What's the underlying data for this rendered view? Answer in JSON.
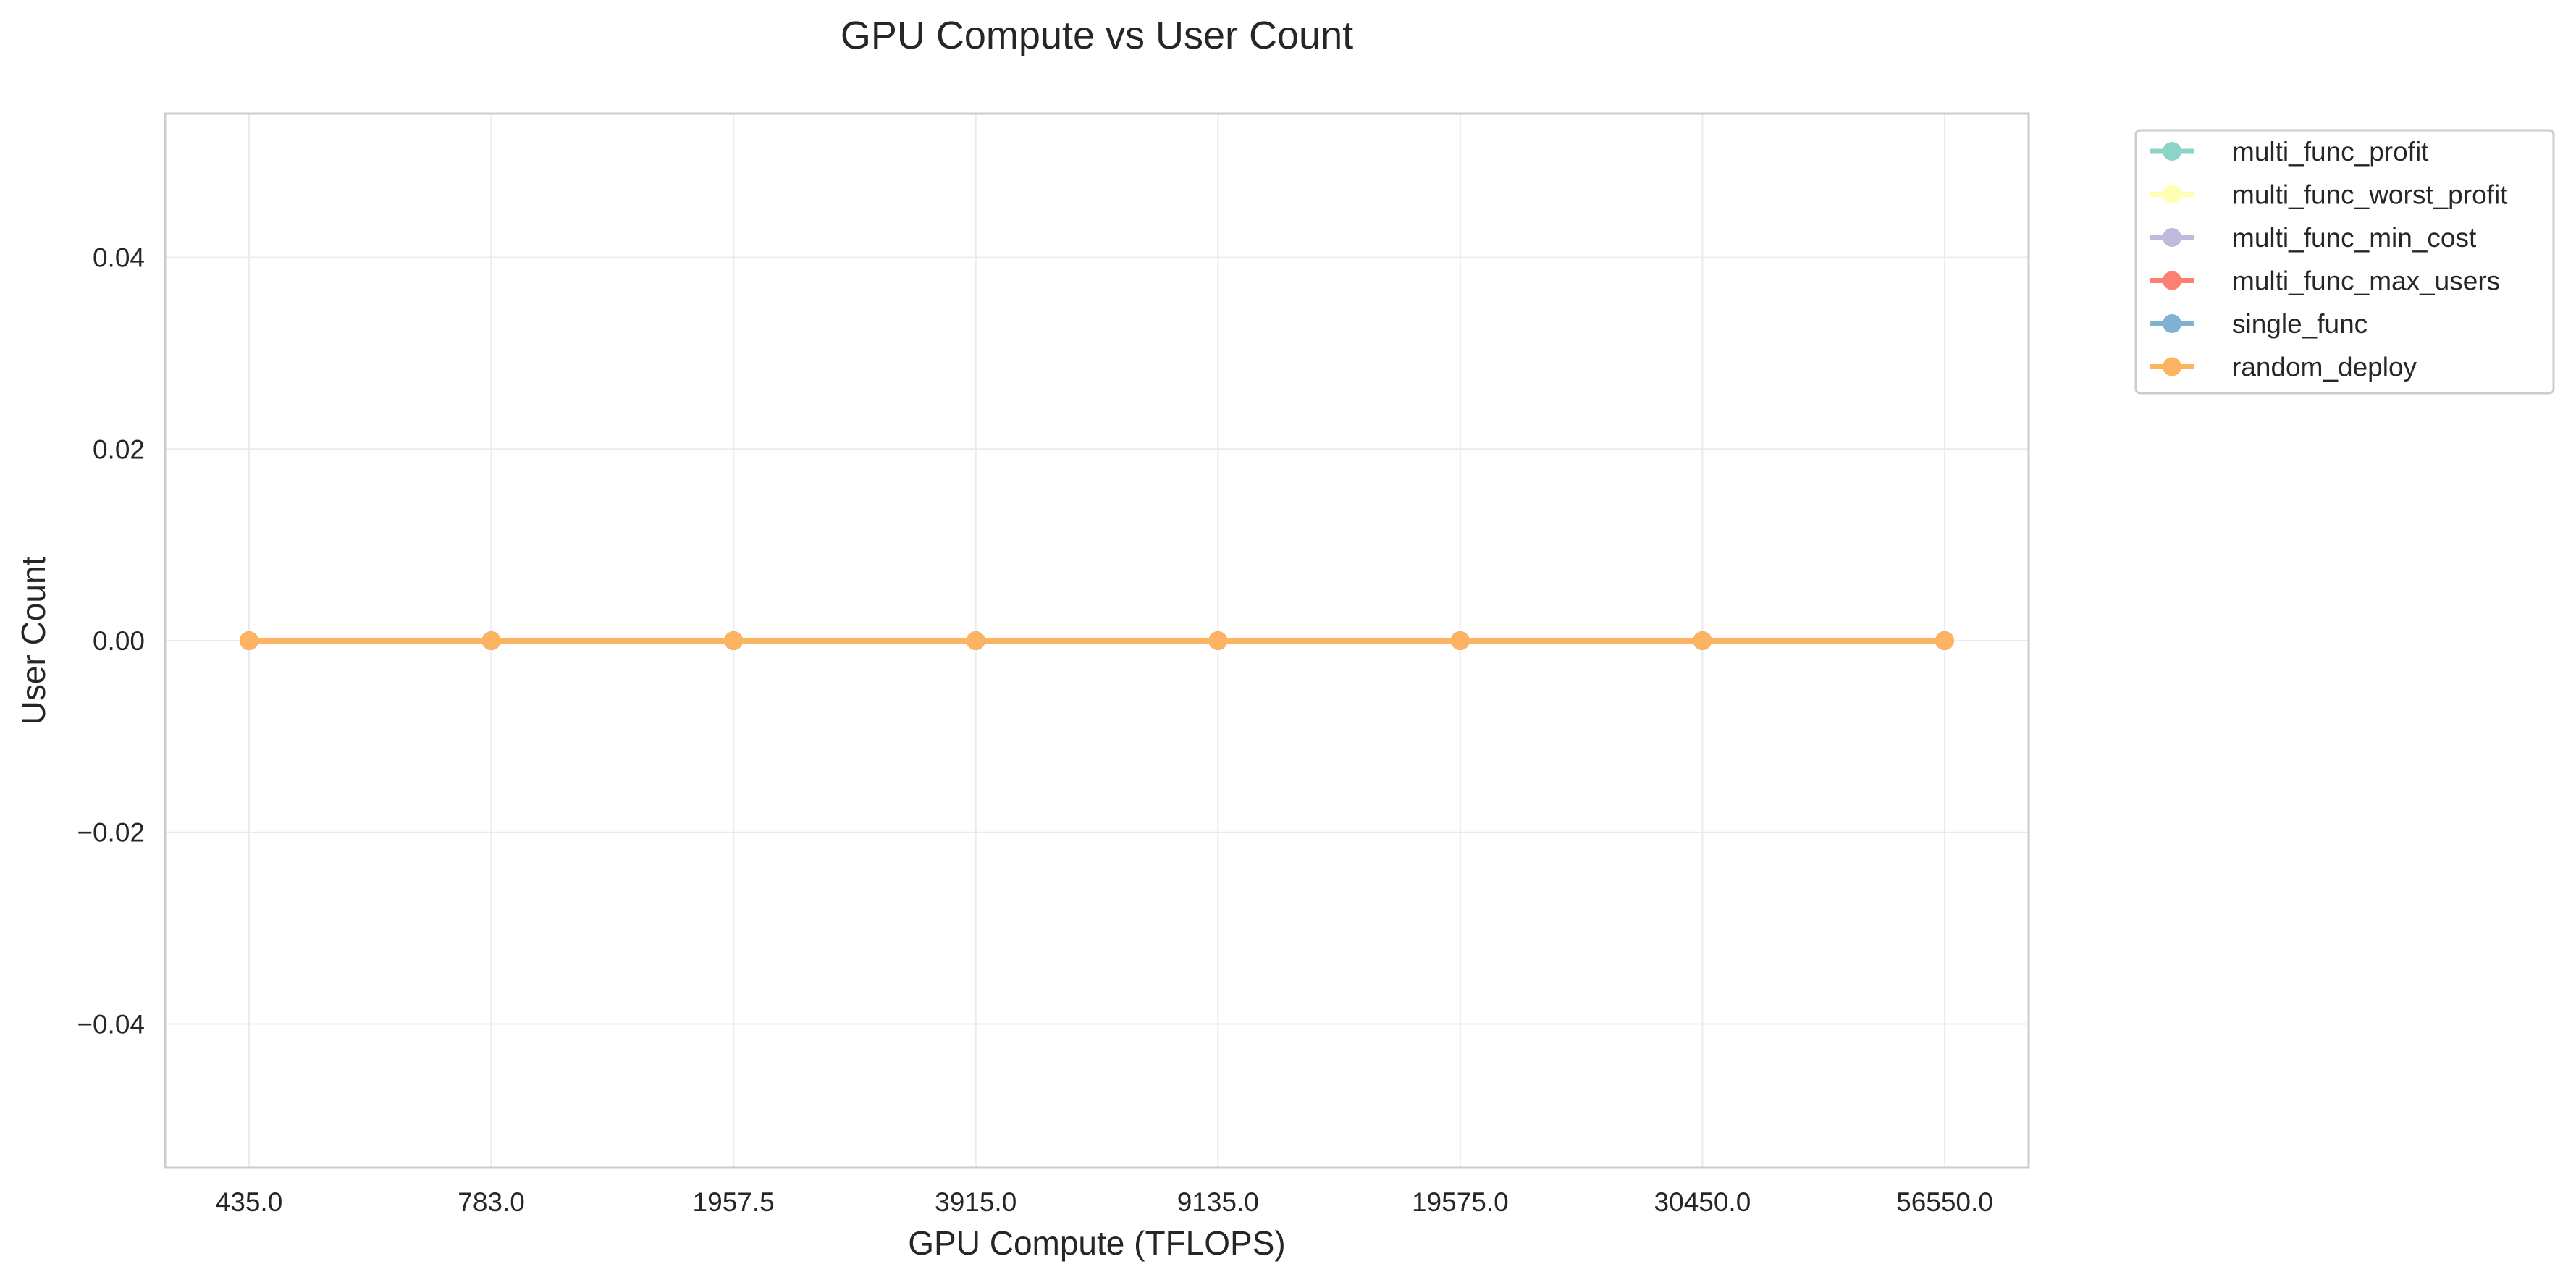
{
  "chart_data": {
    "type": "line",
    "title": "GPU Compute vs User Count",
    "xlabel": "GPU Compute (TFLOPS)",
    "ylabel": "User Count",
    "categories": [
      "435.0",
      "783.0",
      "1957.5",
      "3915.0",
      "9135.0",
      "19575.0",
      "30450.0",
      "56550.0"
    ],
    "ylim": [
      -0.055,
      0.055
    ],
    "yticks": [
      -0.04,
      -0.02,
      0.0,
      0.02,
      0.04
    ],
    "ytick_labels": [
      "−0.04",
      "−0.02",
      "0.00",
      "0.02",
      "0.04"
    ],
    "grid": true,
    "legend_position": "outside-top-right",
    "series": [
      {
        "name": "multi_func_profit",
        "color": "#8dd3c7",
        "values": [
          0,
          0,
          0,
          0,
          0,
          0,
          0,
          0
        ]
      },
      {
        "name": "multi_func_worst_profit",
        "color": "#ffffb3",
        "values": [
          0,
          0,
          0,
          0,
          0,
          0,
          0,
          0
        ]
      },
      {
        "name": "multi_func_min_cost",
        "color": "#bebada",
        "values": [
          0,
          0,
          0,
          0,
          0,
          0,
          0,
          0
        ]
      },
      {
        "name": "multi_func_max_users",
        "color": "#fb8072",
        "values": [
          0,
          0,
          0,
          0,
          0,
          0,
          0,
          0
        ]
      },
      {
        "name": "single_func",
        "color": "#80b1d3",
        "values": [
          0,
          0,
          0,
          0,
          0,
          0,
          0,
          0
        ]
      },
      {
        "name": "random_deploy",
        "color": "#fdb462",
        "values": [
          0,
          0,
          0,
          0,
          0,
          0,
          0,
          0
        ]
      }
    ]
  }
}
